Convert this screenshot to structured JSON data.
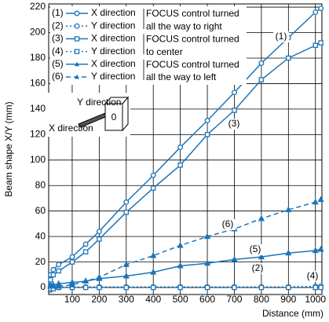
{
  "chart_data": {
    "type": "line",
    "y_label": "Beam shape X/Y (mm)",
    "x_label": "Distance (mm)",
    "x": [
      20,
      30,
      50,
      100,
      150,
      200,
      300,
      400,
      500,
      600,
      700,
      800,
      900,
      1000,
      1020
    ],
    "series": [
      {
        "label": "(1)",
        "name": "X direction",
        "color": "#1b75bb",
        "marker": "circle",
        "dash": "solid",
        "values": [
          10,
          14,
          18,
          24,
          34,
          44,
          67,
          88,
          110,
          131,
          153,
          176,
          196,
          216,
          219
        ]
      },
      {
        "label": "(2)",
        "name": "Y direction",
        "color": "#1b75bb",
        "marker": "circle",
        "dash": "dotted",
        "values": [
          -2,
          -1,
          0,
          0.5,
          0.5,
          0.5,
          0.5,
          0.5,
          0.5,
          0.5,
          0.5,
          0.5,
          0.5,
          1,
          1
        ]
      },
      {
        "label": "(3)",
        "name": "X direction",
        "color": "#1b75bb",
        "marker": "square",
        "dash": "solid",
        "values": [
          6,
          10,
          13,
          20,
          28,
          38,
          59,
          78,
          96,
          120,
          139,
          163,
          180,
          190,
          192
        ]
      },
      {
        "label": "(4)",
        "name": "Y direction",
        "color": "#1b75bb",
        "marker": "square",
        "dash": "dotted",
        "values": [
          -1,
          -1,
          0,
          0,
          0,
          0,
          0,
          0,
          0,
          0,
          0,
          0,
          0,
          0,
          0
        ]
      },
      {
        "label": "(5)",
        "name": "X direction",
        "color": "#1b75bb",
        "marker": "triangle",
        "dash": "solid",
        "values": [
          2,
          2,
          3,
          4,
          5,
          7,
          9,
          12,
          17,
          19,
          22,
          24,
          27,
          29,
          30
        ]
      },
      {
        "label": "(6)",
        "name": "Y direction",
        "color": "#1b75bb",
        "marker": "triangle",
        "dash": "dashed",
        "values": [
          1,
          1,
          1,
          2,
          5,
          8,
          18,
          25,
          33,
          40,
          46,
          54,
          61,
          67,
          69
        ]
      }
    ],
    "notes": [
      "FOCUS control turned",
      "all the way to right",
      "FOCUS control turned",
      "to center",
      "FOCUS control turned",
      "all the way to left"
    ],
    "inset": {
      "y_direction": "Y direction",
      "x_direction": "X direction",
      "zero": "0"
    },
    "xlim": [
      13,
      1024
    ],
    "ylim": [
      -5.5,
      222.5
    ],
    "xticks": [
      100,
      200,
      300,
      400,
      500,
      600,
      700,
      800,
      900,
      1000
    ],
    "yticks": [
      0,
      20,
      40,
      60,
      80,
      100,
      120,
      140,
      160,
      180,
      200,
      220
    ],
    "grid": true
  }
}
